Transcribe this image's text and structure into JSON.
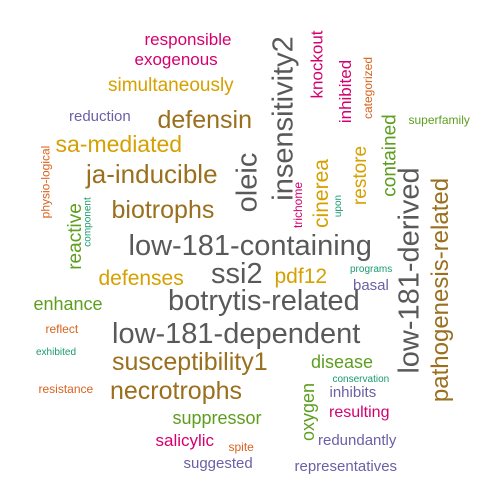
{
  "palette": {
    "gray": "#595959",
    "brown": "#9a6f1e",
    "gold": "#d6a000",
    "green": "#5d9e1f",
    "magenta": "#d4006f",
    "orange": "#d9621c",
    "purple": "#6b5fa6",
    "teal": "#1a9a6c"
  },
  "words": [
    {
      "text": "low-181-containing",
      "color": "gray"
    },
    {
      "text": "botrytis-related",
      "color": "gray"
    },
    {
      "text": "low-181-dependent",
      "color": "gray"
    },
    {
      "text": "low-181-derived",
      "color": "gray"
    },
    {
      "text": "insensitivity2",
      "color": "gray"
    },
    {
      "text": "ssi2",
      "color": "gray"
    },
    {
      "text": "oleic",
      "color": "gray"
    },
    {
      "text": "pathogenesis-related",
      "color": "brown"
    },
    {
      "text": "ja-inducible",
      "color": "brown"
    },
    {
      "text": "biotrophs",
      "color": "brown"
    },
    {
      "text": "necrotrophs",
      "color": "brown"
    },
    {
      "text": "susceptibility1",
      "color": "brown"
    },
    {
      "text": "defensin",
      "color": "brown"
    },
    {
      "text": "sa-mediated",
      "color": "gold"
    },
    {
      "text": "simultaneously",
      "color": "gold"
    },
    {
      "text": "defenses",
      "color": "gold"
    },
    {
      "text": "pdf12",
      "color": "gold"
    },
    {
      "text": "cinerea",
      "color": "gold"
    },
    {
      "text": "restore",
      "color": "gold"
    },
    {
      "text": "contained",
      "color": "green"
    },
    {
      "text": "reactive",
      "color": "green"
    },
    {
      "text": "enhance",
      "color": "green"
    },
    {
      "text": "disease",
      "color": "green"
    },
    {
      "text": "oxygen",
      "color": "green"
    },
    {
      "text": "suppressor",
      "color": "green"
    },
    {
      "text": "superfamily",
      "color": "green"
    },
    {
      "text": "responsible",
      "color": "magenta"
    },
    {
      "text": "exogenous",
      "color": "magenta"
    },
    {
      "text": "knockout",
      "color": "magenta"
    },
    {
      "text": "inhibited",
      "color": "magenta"
    },
    {
      "text": "salicylic",
      "color": "magenta"
    },
    {
      "text": "resulting",
      "color": "magenta"
    },
    {
      "text": "trichome",
      "color": "magenta"
    },
    {
      "text": "categorized",
      "color": "orange"
    },
    {
      "text": "physio-logical",
      "color": "orange"
    },
    {
      "text": "reflect",
      "color": "orange"
    },
    {
      "text": "resistance",
      "color": "orange"
    },
    {
      "text": "spite",
      "color": "orange"
    },
    {
      "text": "reduction",
      "color": "purple"
    },
    {
      "text": "basal",
      "color": "purple"
    },
    {
      "text": "inhibits",
      "color": "purple"
    },
    {
      "text": "redundantly",
      "color": "purple"
    },
    {
      "text": "suggested",
      "color": "purple"
    },
    {
      "text": "representatives",
      "color": "purple"
    },
    {
      "text": "component",
      "color": "teal"
    },
    {
      "text": "upon",
      "color": "teal"
    },
    {
      "text": "programs",
      "color": "teal"
    },
    {
      "text": "exhibited",
      "color": "teal"
    },
    {
      "text": "conservation",
      "color": "teal"
    }
  ]
}
